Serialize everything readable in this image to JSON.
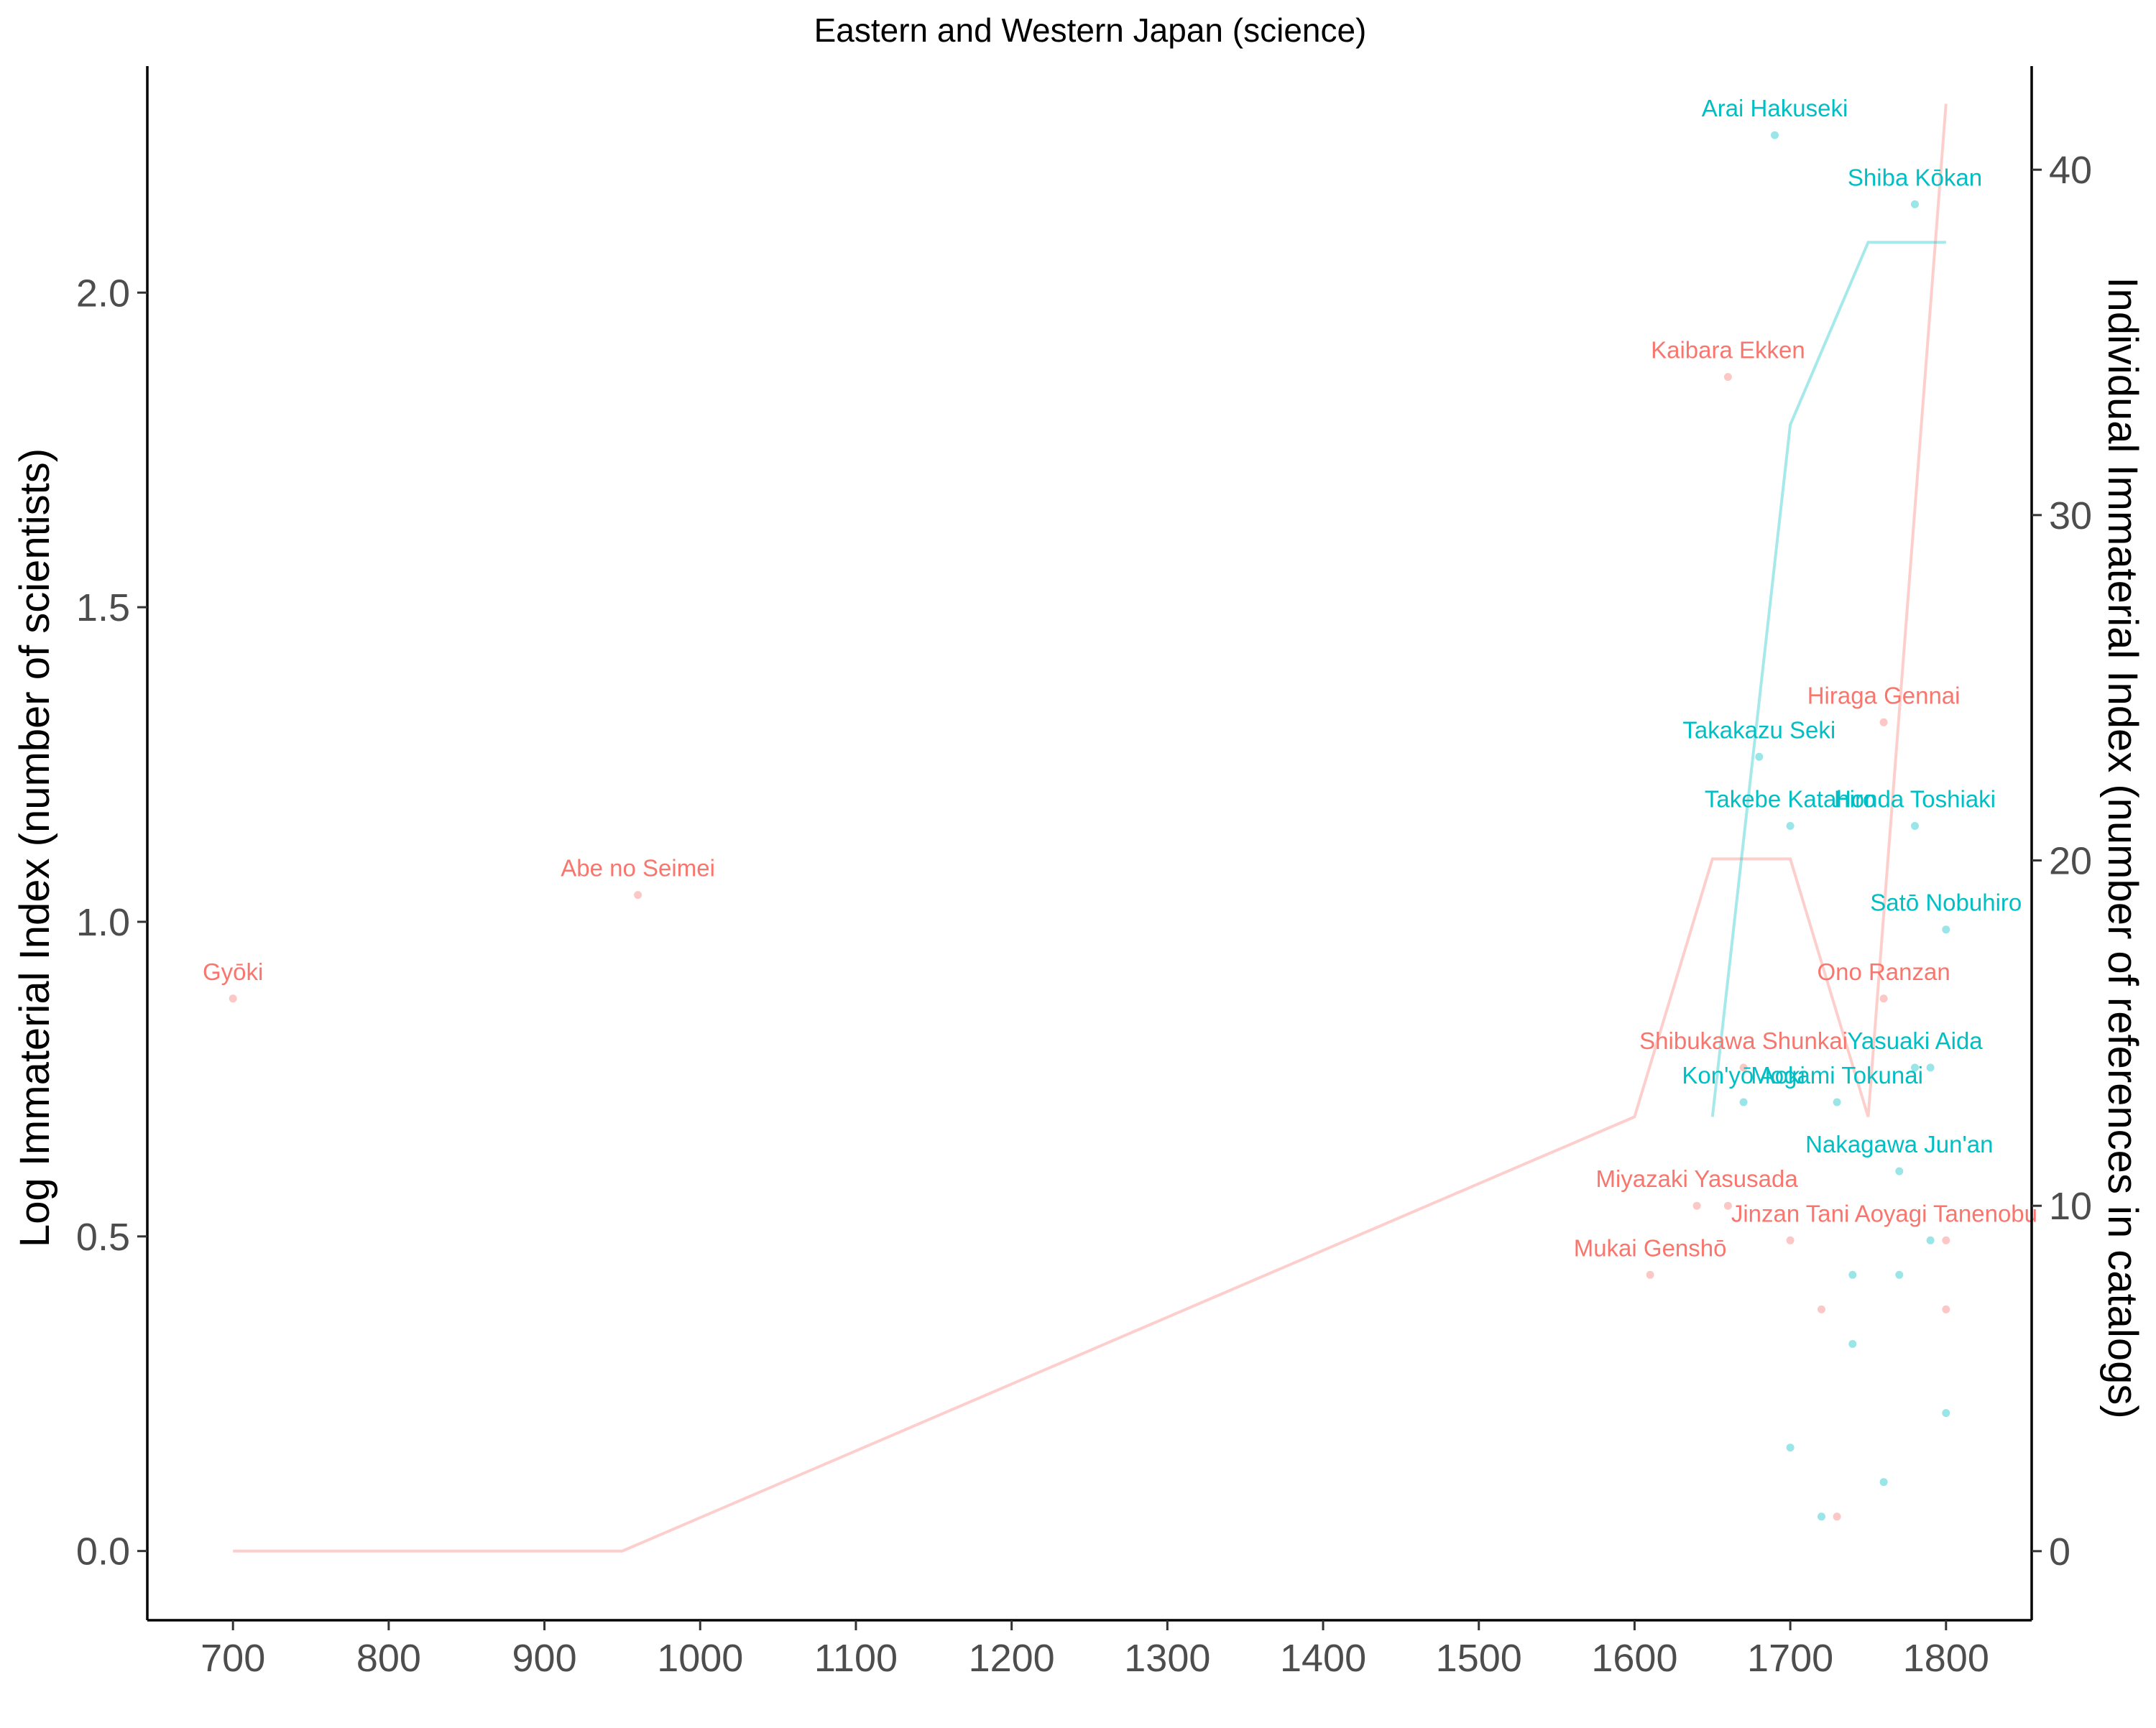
{
  "chart_data": {
    "type": "line",
    "title": "Eastern and Western Japan (science)",
    "xlabel": "",
    "ylabel": "Log Immaterial Index (number of scientists)",
    "y2label": "Individual Immaterial Index (number of references in catalogs)",
    "xlim": [
      645,
      1855
    ],
    "ylim": [
      -0.11,
      2.36
    ],
    "y2lim": [
      -2,
      43
    ],
    "x_ticks": [
      700,
      800,
      900,
      1000,
      1100,
      1200,
      1300,
      1400,
      1500,
      1600,
      1700,
      1800
    ],
    "y_ticks": [
      0.0,
      0.5,
      1.0,
      1.5,
      2.0
    ],
    "y_tick_labels": [
      "0.0",
      "0.5",
      "1.0",
      "1.5",
      "2.0"
    ],
    "y2_ticks": [
      0,
      10,
      20,
      30,
      40
    ],
    "y2_tick_labels": [
      "0",
      "10",
      "20",
      "30",
      "40"
    ],
    "grid": false,
    "legend": "none",
    "colors": {
      "western": "#f8766d",
      "eastern": "#00bfc4"
    },
    "series": [
      {
        "name": "Western Japan",
        "color": "#f8766d",
        "axis": "left",
        "x": [
          700,
          950,
          1600,
          1650,
          1700,
          1750,
          1800
        ],
        "y": [
          0.0,
          0.0,
          0.69,
          1.1,
          1.1,
          0.69,
          2.3
        ]
      },
      {
        "name": "Eastern Japan",
        "color": "#00bfc4",
        "axis": "left",
        "x": [
          1650,
          1700,
          1750,
          1800
        ],
        "y": [
          0.69,
          1.79,
          2.08,
          2.08
        ]
      }
    ],
    "points": [
      {
        "group": "Western Japan",
        "x": 700,
        "y": 16,
        "label": "Gyōki"
      },
      {
        "group": "Western Japan",
        "x": 960,
        "y": 19,
        "label": "Abe no Seimei"
      },
      {
        "group": "Western Japan",
        "x": 1660,
        "y": 34,
        "label": "Kaibara Ekken"
      },
      {
        "group": "Western Japan",
        "x": 1760,
        "y": 24,
        "label": "Hiraga Gennai"
      },
      {
        "group": "Western Japan",
        "x": 1760,
        "y": 16,
        "label": "Ono Ranzan"
      },
      {
        "group": "Western Japan",
        "x": 1670,
        "y": 14,
        "label": "Shibukawa Shunkai"
      },
      {
        "group": "Western Japan",
        "x": 1640,
        "y": 10,
        "label": "Miyazaki Yasusada"
      },
      {
        "group": "Western Japan",
        "x": 1610,
        "y": 8,
        "label": "Mukai Genshō"
      },
      {
        "group": "Western Japan",
        "x": 1800,
        "y": 9,
        "label": "Aoyagi Tanenobu"
      },
      {
        "group": "Western Japan",
        "x": 1700,
        "y": 9,
        "label": "Jinzan Tani"
      },
      {
        "group": "Western Japan",
        "x": 1660,
        "y": 10,
        "label": ""
      },
      {
        "group": "Western Japan",
        "x": 1720,
        "y": 7,
        "label": ""
      },
      {
        "group": "Western Japan",
        "x": 1800,
        "y": 7,
        "label": ""
      },
      {
        "group": "Western Japan",
        "x": 1730,
        "y": 1,
        "label": ""
      },
      {
        "group": "Eastern Japan",
        "x": 1690,
        "y": 41,
        "label": "Arai Hakuseki"
      },
      {
        "group": "Eastern Japan",
        "x": 1780,
        "y": 39,
        "label": "Shiba Kōkan"
      },
      {
        "group": "Eastern Japan",
        "x": 1680,
        "y": 23,
        "label": "Takakazu Seki"
      },
      {
        "group": "Eastern Japan",
        "x": 1700,
        "y": 21,
        "label": "Takebe Katahiro"
      },
      {
        "group": "Eastern Japan",
        "x": 1780,
        "y": 21,
        "label": "Honda Toshiaki"
      },
      {
        "group": "Eastern Japan",
        "x": 1800,
        "y": 18,
        "label": "Satō Nobuhiro"
      },
      {
        "group": "Eastern Japan",
        "x": 1780,
        "y": 14,
        "label": "Yasuaki Aida"
      },
      {
        "group": "Eastern Japan",
        "x": 1790,
        "y": 14,
        "label": ""
      },
      {
        "group": "Eastern Japan",
        "x": 1730,
        "y": 13,
        "label": "Mogami Tokunai"
      },
      {
        "group": "Eastern Japan",
        "x": 1670,
        "y": 13,
        "label": "Kon'yō Aoki"
      },
      {
        "group": "Eastern Japan",
        "x": 1770,
        "y": 11,
        "label": "Nakagawa Jun'an"
      },
      {
        "group": "Eastern Japan",
        "x": 1790,
        "y": 9,
        "label": ""
      },
      {
        "group": "Eastern Japan",
        "x": 1740,
        "y": 8,
        "label": ""
      },
      {
        "group": "Eastern Japan",
        "x": 1770,
        "y": 8,
        "label": ""
      },
      {
        "group": "Eastern Japan",
        "x": 1740,
        "y": 6,
        "label": ""
      },
      {
        "group": "Eastern Japan",
        "x": 1800,
        "y": 4,
        "label": ""
      },
      {
        "group": "Eastern Japan",
        "x": 1700,
        "y": 3,
        "label": ""
      },
      {
        "group": "Eastern Japan",
        "x": 1760,
        "y": 2,
        "label": ""
      },
      {
        "group": "Eastern Japan",
        "x": 1720,
        "y": 1,
        "label": ""
      }
    ]
  }
}
